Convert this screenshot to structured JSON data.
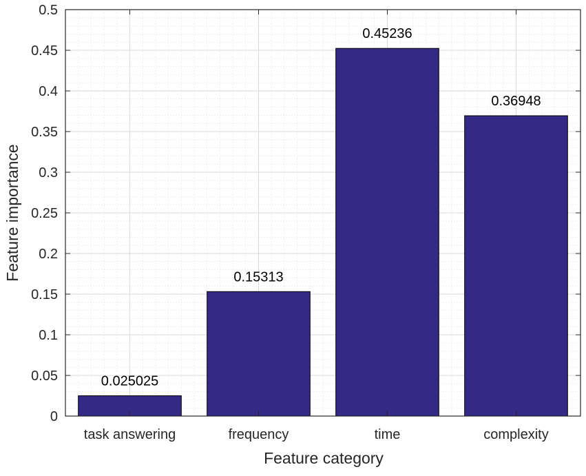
{
  "chart_data": {
    "type": "bar",
    "categories": [
      "task answering",
      "frequency",
      "time",
      "complexity"
    ],
    "values": [
      0.025025,
      0.15313,
      0.45236,
      0.36948
    ],
    "data_labels": [
      "0.025025",
      "0.15313",
      "0.45236",
      "0.36948"
    ],
    "xlabel": "Feature category",
    "ylabel": "Feature importance",
    "ylim": [
      0,
      0.5
    ],
    "yticks": [
      0,
      0.05,
      0.1,
      0.15,
      0.2,
      0.25,
      0.3,
      0.35,
      0.4,
      0.45,
      0.5
    ],
    "ytick_labels": [
      "0",
      "0.05",
      "0.1",
      "0.15",
      "0.2",
      "0.25",
      "0.3",
      "0.35",
      "0.4",
      "0.45",
      "0.5"
    ],
    "grid": true,
    "minor_grid": true,
    "bar_color": "#342984",
    "bar_edge_color": "#000000",
    "grid_color": "#d9d9d9"
  }
}
